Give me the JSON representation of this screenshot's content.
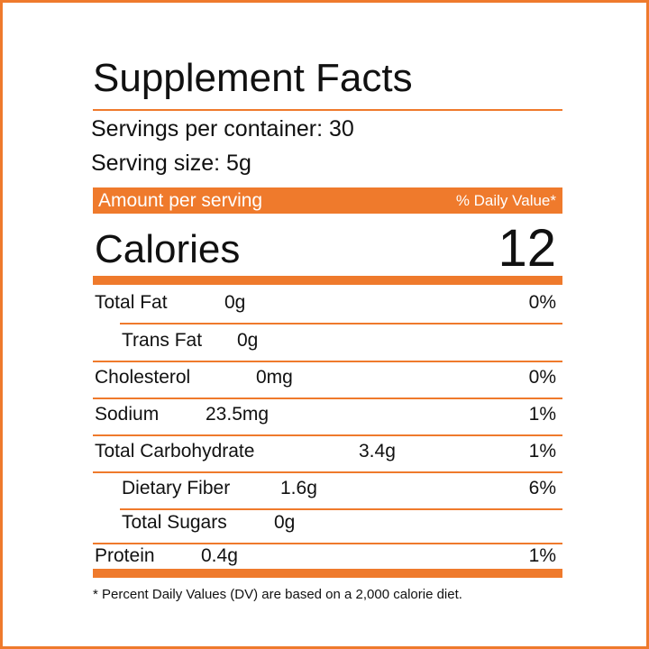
{
  "title": "Supplement Facts",
  "servings_per_container": "Servings per container: 30",
  "serving_size": "Serving size: 5g",
  "amount_header": "Amount per serving",
  "dv_header": "% Daily Value*",
  "calories": {
    "label": "Calories",
    "value": "12"
  },
  "rows": [
    {
      "name": "Total Fat",
      "amount": "0g",
      "dv": "0%"
    },
    {
      "name": "Trans Fat",
      "amount": "0g"
    },
    {
      "name": "Cholesterol",
      "amount": "0mg",
      "dv": "0%"
    },
    {
      "name": "Sodium",
      "amount": "23.5mg",
      "dv": "1%"
    },
    {
      "name": "Total Carbohydrate",
      "amount": "3.4g",
      "dv": "1%"
    },
    {
      "name": "Dietary Fiber",
      "amount": "1.6g",
      "dv": "6%"
    },
    {
      "name": "Total Sugars",
      "amount": "0g"
    },
    {
      "name": "Protein",
      "amount": "0.4g",
      "dv": "1%"
    }
  ],
  "footnote": "* Percent Daily Values (DV) are based on a 2,000 calorie diet."
}
